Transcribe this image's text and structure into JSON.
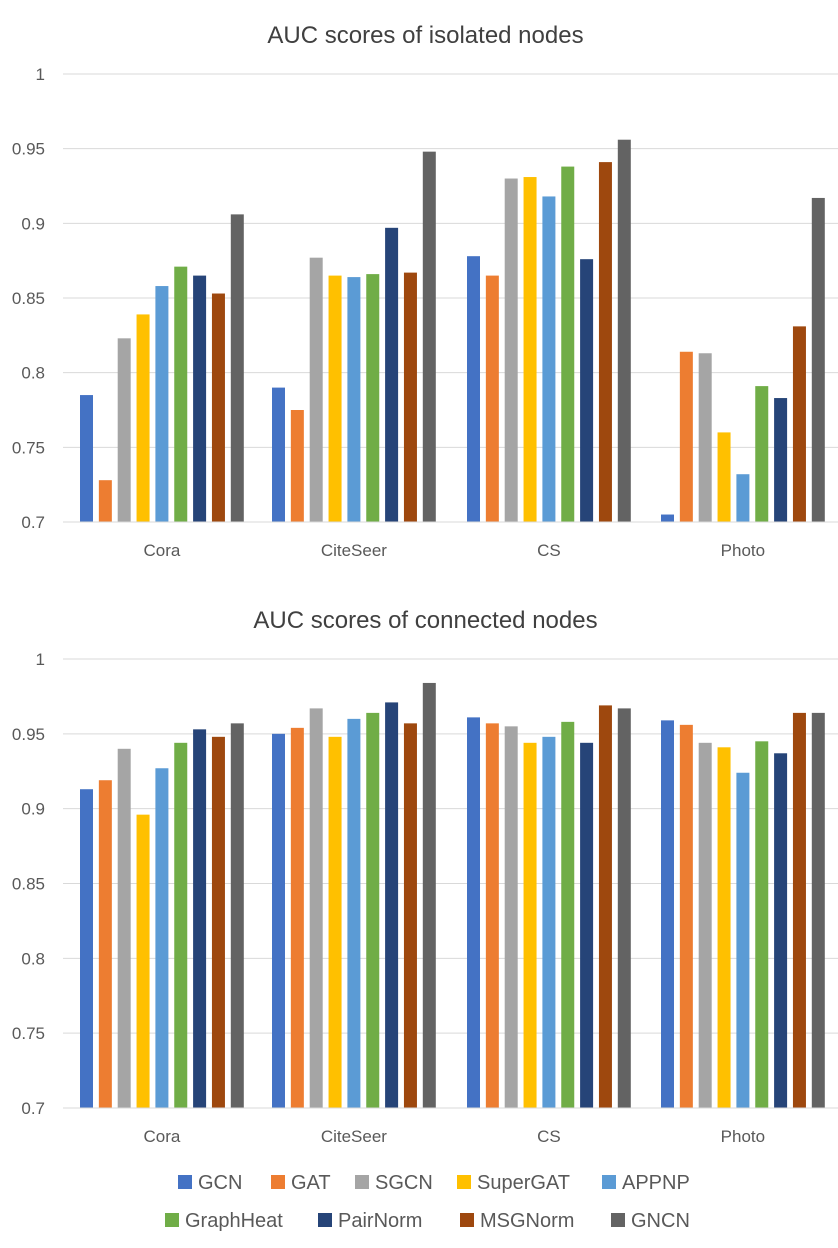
{
  "colors": {
    "GCN": "#4472C4",
    "GAT": "#ED7D31",
    "SGCN": "#A5A5A5",
    "SuperGAT": "#FFC000",
    "APPNP": "#5B9BD5",
    "GraphHeat": "#70AD47",
    "PairNorm": "#264478",
    "MSGNorm": "#9E480E",
    "GNCN": "#636363"
  },
  "chart_data": [
    {
      "type": "bar",
      "title": "AUC scores of isolated nodes",
      "xlabel": "",
      "ylabel": "",
      "ylim": [
        0.7,
        1.0
      ],
      "yticks": [
        "0.7",
        "0.75",
        "0.8",
        "0.85",
        "0.9",
        "0.95",
        "1"
      ],
      "grid": true,
      "categories": [
        "Cora",
        "CiteSeer",
        "CS",
        "Photo"
      ],
      "series": [
        {
          "name": "GCN",
          "values": [
            0.785,
            0.79,
            0.878,
            0.705
          ]
        },
        {
          "name": "GAT",
          "values": [
            0.728,
            0.775,
            0.865,
            0.814
          ]
        },
        {
          "name": "SGCN",
          "values": [
            0.823,
            0.877,
            0.93,
            0.813
          ]
        },
        {
          "name": "SuperGAT",
          "values": [
            0.839,
            0.865,
            0.931,
            0.76
          ]
        },
        {
          "name": "APPNP",
          "values": [
            0.858,
            0.864,
            0.918,
            0.732
          ]
        },
        {
          "name": "GraphHeat",
          "values": [
            0.871,
            0.866,
            0.938,
            0.791
          ]
        },
        {
          "name": "PairNorm",
          "values": [
            0.865,
            0.897,
            0.876,
            0.783
          ]
        },
        {
          "name": "MSGNorm",
          "values": [
            0.853,
            0.867,
            0.941,
            0.831
          ]
        },
        {
          "name": "GNCN",
          "values": [
            0.906,
            0.948,
            0.956,
            0.917
          ]
        }
      ]
    },
    {
      "type": "bar",
      "title": "AUC scores of connected nodes",
      "xlabel": "",
      "ylabel": "",
      "ylim": [
        0.7,
        1.0
      ],
      "yticks": [
        "0.7",
        "0.75",
        "0.8",
        "0.85",
        "0.9",
        "0.95",
        "1"
      ],
      "grid": true,
      "categories": [
        "Cora",
        "CiteSeer",
        "CS",
        "Photo"
      ],
      "series": [
        {
          "name": "GCN",
          "values": [
            0.913,
            0.95,
            0.961,
            0.959
          ]
        },
        {
          "name": "GAT",
          "values": [
            0.919,
            0.954,
            0.957,
            0.956
          ]
        },
        {
          "name": "SGCN",
          "values": [
            0.94,
            0.967,
            0.955,
            0.944
          ]
        },
        {
          "name": "SuperGAT",
          "values": [
            0.896,
            0.948,
            0.944,
            0.941
          ]
        },
        {
          "name": "APPNP",
          "values": [
            0.927,
            0.96,
            0.948,
            0.924
          ]
        },
        {
          "name": "GraphHeat",
          "values": [
            0.944,
            0.964,
            0.958,
            0.945
          ]
        },
        {
          "name": "PairNorm",
          "values": [
            0.953,
            0.971,
            0.944,
            0.937
          ]
        },
        {
          "name": "MSGNorm",
          "values": [
            0.948,
            0.957,
            0.969,
            0.964
          ]
        },
        {
          "name": "GNCN",
          "values": [
            0.957,
            0.984,
            0.967,
            0.964
          ]
        }
      ]
    }
  ],
  "legend": {
    "position": "bottom",
    "items": [
      "GCN",
      "GAT",
      "SGCN",
      "SuperGAT",
      "APPNP",
      "GraphHeat",
      "PairNorm",
      "MSGNorm",
      "GNCN"
    ]
  }
}
